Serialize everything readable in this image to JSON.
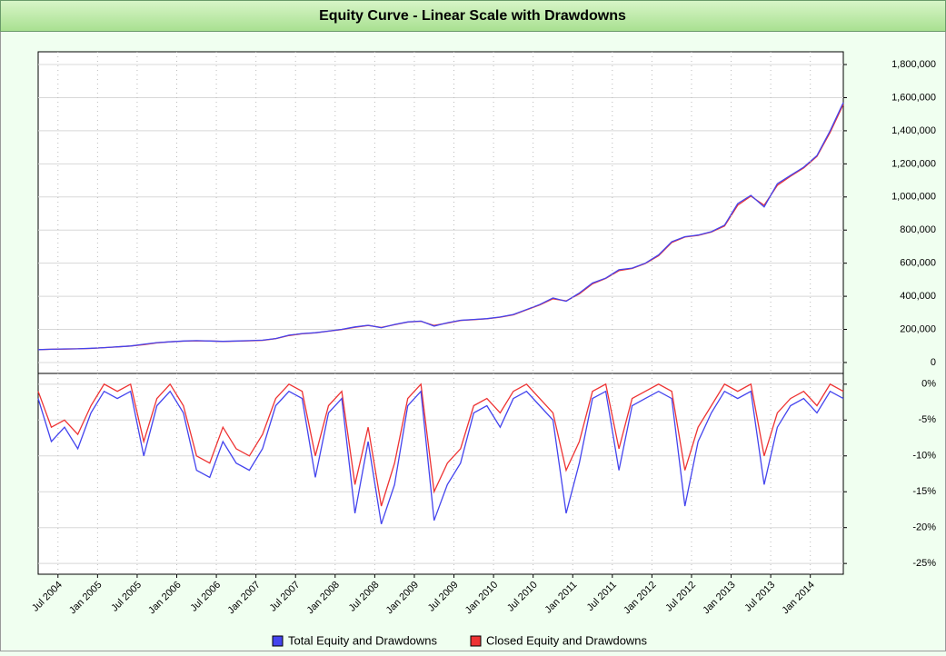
{
  "chart_data": [
    {
      "type": "line",
      "title": "Equity Curve - Linear Scale with Drawdowns",
      "x": [
        "2004-04",
        "2004-06",
        "2004-08",
        "2004-10",
        "2004-12",
        "2005-02",
        "2005-04",
        "2005-06",
        "2005-08",
        "2005-10",
        "2005-12",
        "2006-02",
        "2006-04",
        "2006-06",
        "2006-08",
        "2006-10",
        "2006-12",
        "2007-02",
        "2007-04",
        "2007-06",
        "2007-08",
        "2007-10",
        "2007-12",
        "2008-02",
        "2008-04",
        "2008-06",
        "2008-08",
        "2008-10",
        "2008-12",
        "2009-02",
        "2009-04",
        "2009-06",
        "2009-08",
        "2009-10",
        "2009-12",
        "2010-02",
        "2010-04",
        "2010-06",
        "2010-08",
        "2010-10",
        "2010-12",
        "2011-02",
        "2011-04",
        "2011-06",
        "2011-08",
        "2011-10",
        "2011-12",
        "2012-02",
        "2012-04",
        "2012-06",
        "2012-08",
        "2012-10",
        "2012-12",
        "2013-02",
        "2013-04",
        "2013-06",
        "2013-08",
        "2013-10",
        "2013-12",
        "2014-02",
        "2014-04",
        "2014-06"
      ],
      "series": [
        {
          "name": "Total Equity and Drawdowns",
          "color": "#4444ee",
          "values": [
            78000,
            80000,
            82000,
            83000,
            86000,
            90000,
            95000,
            100000,
            110000,
            120000,
            125000,
            130000,
            132000,
            130000,
            128000,
            130000,
            132000,
            135000,
            145000,
            165000,
            175000,
            180000,
            190000,
            200000,
            215000,
            225000,
            210000,
            230000,
            245000,
            250000,
            220000,
            240000,
            255000,
            260000,
            265000,
            275000,
            290000,
            320000,
            350000,
            390000,
            370000,
            420000,
            480000,
            510000,
            560000,
            570000,
            600000,
            650000,
            730000,
            760000,
            770000,
            790000,
            830000,
            960000,
            1010000,
            940000,
            1080000,
            1130000,
            1180000,
            1250000,
            1400000,
            1570000
          ]
        },
        {
          "name": "Closed Equity and Drawdowns",
          "color": "#ee3333",
          "values": [
            78000,
            80000,
            81000,
            83000,
            85000,
            90000,
            94000,
            100000,
            108000,
            119000,
            125000,
            129000,
            131000,
            130000,
            127000,
            129000,
            131000,
            134000,
            144000,
            163000,
            174000,
            179000,
            189000,
            199000,
            213000,
            224000,
            212000,
            228000,
            244000,
            249000,
            224000,
            238000,
            254000,
            259000,
            264000,
            274000,
            288000,
            318000,
            348000,
            385000,
            372000,
            415000,
            475000,
            508000,
            555000,
            568000,
            598000,
            645000,
            725000,
            758000,
            768000,
            788000,
            825000,
            950000,
            1005000,
            950000,
            1070000,
            1125000,
            1175000,
            1245000,
            1390000,
            1560000
          ]
        }
      ],
      "xlim": [
        "2004-04",
        "2014-06"
      ],
      "ylim": [
        -66000,
        1877000
      ],
      "yticks": [
        0,
        {
          "value": 200000,
          "label": "200,000"
        },
        {
          "value": 400000,
          "label": "400,000"
        },
        {
          "value": 600000,
          "label": "600,000"
        },
        {
          "value": 800000,
          "label": "800,000"
        },
        {
          "value": 1000000,
          "label": "1,000,000"
        },
        {
          "value": 1200000,
          "label": "1,200,000"
        },
        {
          "value": 1400000,
          "label": "1,400,000"
        },
        {
          "value": 1600000,
          "label": "1,600,000"
        },
        {
          "value": 1800000,
          "label": "1,800,000"
        }
      ],
      "grid": true,
      "legend": "bottom"
    },
    {
      "type": "line",
      "x": [
        "2004-04",
        "2004-06",
        "2004-08",
        "2004-10",
        "2004-12",
        "2005-02",
        "2005-04",
        "2005-06",
        "2005-08",
        "2005-10",
        "2005-12",
        "2006-02",
        "2006-04",
        "2006-06",
        "2006-08",
        "2006-10",
        "2006-12",
        "2007-02",
        "2007-04",
        "2007-06",
        "2007-08",
        "2007-10",
        "2007-12",
        "2008-02",
        "2008-04",
        "2008-06",
        "2008-08",
        "2008-10",
        "2008-12",
        "2009-02",
        "2009-04",
        "2009-06",
        "2009-08",
        "2009-10",
        "2009-12",
        "2010-02",
        "2010-04",
        "2010-06",
        "2010-08",
        "2010-10",
        "2010-12",
        "2011-02",
        "2011-04",
        "2011-06",
        "2011-08",
        "2011-10",
        "2011-12",
        "2012-02",
        "2012-04",
        "2012-06",
        "2012-08",
        "2012-10",
        "2012-12",
        "2013-02",
        "2013-04",
        "2013-06",
        "2013-08",
        "2013-10",
        "2013-12",
        "2014-02",
        "2014-04",
        "2014-06"
      ],
      "series": [
        {
          "color": "#4444ee",
          "values": [
            -2,
            -8,
            -6,
            -9,
            -4,
            -1,
            -2,
            -1,
            -10,
            -3,
            -1,
            -4,
            -12,
            -13,
            -8,
            -11,
            -12,
            -9,
            -3,
            -1,
            -2,
            -13,
            -4,
            -2,
            -18,
            -8,
            -19.5,
            -14,
            -3,
            -1,
            -19,
            -14,
            -11,
            -4,
            -3,
            -6,
            -2,
            -1,
            -3,
            -5,
            -18,
            -11,
            -2,
            -1,
            -12,
            -3,
            -2,
            -1,
            -2,
            -17,
            -8,
            -4,
            -1,
            -2,
            -1,
            -14,
            -6,
            -3,
            -2,
            -4,
            -1,
            -2
          ]
        },
        {
          "color": "#ee3333",
          "values": [
            -1,
            -6,
            -5,
            -7,
            -3,
            0,
            -1,
            0,
            -8,
            -2,
            0,
            -3,
            -10,
            -11,
            -6,
            -9,
            -10,
            -7,
            -2,
            0,
            -1,
            -10,
            -3,
            -1,
            -14,
            -6,
            -17,
            -11,
            -2,
            0,
            -15,
            -11,
            -9,
            -3,
            -2,
            -4,
            -1,
            0,
            -2,
            -4,
            -12,
            -8,
            -1,
            0,
            -9,
            -2,
            -1,
            0,
            -1,
            -12,
            -6,
            -3,
            0,
            -1,
            0,
            -10,
            -4,
            -2,
            -1,
            -3,
            0,
            -1
          ]
        }
      ],
      "xlim": [
        "2004-04",
        "2014-06"
      ],
      "ylim": [
        -26.5,
        1.5
      ],
      "yticks": [
        {
          "value": 0,
          "label": "0%"
        },
        {
          "value": -5,
          "label": "-5%"
        },
        {
          "value": -10,
          "label": "-10%"
        },
        {
          "value": -15,
          "label": "-15%"
        },
        {
          "value": -20,
          "label": "-20%"
        },
        {
          "value": -25,
          "label": "-25%"
        }
      ],
      "xticks": [
        {
          "value": "2004-07",
          "label": "Jul 2004"
        },
        {
          "value": "2005-01",
          "label": "Jan 2005"
        },
        {
          "value": "2005-07",
          "label": "Jul 2005"
        },
        {
          "value": "2006-01",
          "label": "Jan 2006"
        },
        {
          "value": "2006-07",
          "label": "Jul 2006"
        },
        {
          "value": "2007-01",
          "label": "Jan 2007"
        },
        {
          "value": "2007-07",
          "label": "Jul 2007"
        },
        {
          "value": "2008-01",
          "label": "Jan 2008"
        },
        {
          "value": "2008-07",
          "label": "Jul 2008"
        },
        {
          "value": "2009-01",
          "label": "Jan 2009"
        },
        {
          "value": "2009-07",
          "label": "Jul 2009"
        },
        {
          "value": "2010-01",
          "label": "Jan 2010"
        },
        {
          "value": "2010-07",
          "label": "Jul 2010"
        },
        {
          "value": "2011-01",
          "label": "Jan 2011"
        },
        {
          "value": "2011-07",
          "label": "Jul 2011"
        },
        {
          "value": "2012-01",
          "label": "Jan 2012"
        },
        {
          "value": "2012-07",
          "label": "Jul 2012"
        },
        {
          "value": "2013-01",
          "label": "Jan 2013"
        },
        {
          "value": "2013-07",
          "label": "Jul 2013"
        },
        {
          "value": "2014-01",
          "label": "Jan 2014"
        }
      ],
      "grid": true
    }
  ]
}
